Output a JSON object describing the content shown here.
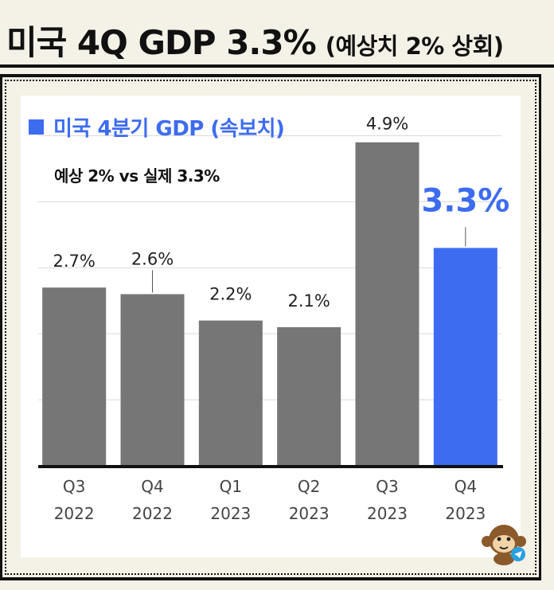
{
  "headline": {
    "title": "미국 4Q GDP 3.3%",
    "subtitle": "(예상치 2% 상회)"
  },
  "legend": {
    "label": "미국 4분기 GDP (속보치)",
    "color": "#3d6cf0"
  },
  "note": "예상 2% vs 실제 3.3%",
  "chart_data": {
    "type": "bar",
    "categories": [
      "Q3 2022",
      "Q4 2022",
      "Q1 2023",
      "Q2 2023",
      "Q3 2023",
      "Q4 2023"
    ],
    "category_lines": [
      [
        "Q3",
        "2022"
      ],
      [
        "Q4",
        "2022"
      ],
      [
        "Q1",
        "2023"
      ],
      [
        "Q2",
        "2023"
      ],
      [
        "Q3",
        "2023"
      ],
      [
        "Q4",
        "2023"
      ]
    ],
    "series": [
      {
        "values": [
          2.7,
          2.6,
          2.2,
          2.1,
          4.9,
          3.3
        ]
      }
    ],
    "data_labels": [
      "2.7%",
      "2.6%",
      "2.2%",
      "2.1%",
      "4.9%",
      "3.3%"
    ],
    "bar_colors": [
      "#767676",
      "#767676",
      "#767676",
      "#767676",
      "#767676",
      "#3d6cf0"
    ],
    "highlight_index": 5,
    "ylim": [
      0,
      5.5
    ],
    "grid": true,
    "title": "",
    "xlabel": "",
    "ylabel": ""
  },
  "icons": {
    "mascot": "monkey-icon",
    "telegram": "telegram-icon"
  },
  "colors": {
    "background": "#f4f1e6",
    "panel": "#ffffff",
    "bar": "#767676",
    "highlight": "#3d6cf0"
  }
}
